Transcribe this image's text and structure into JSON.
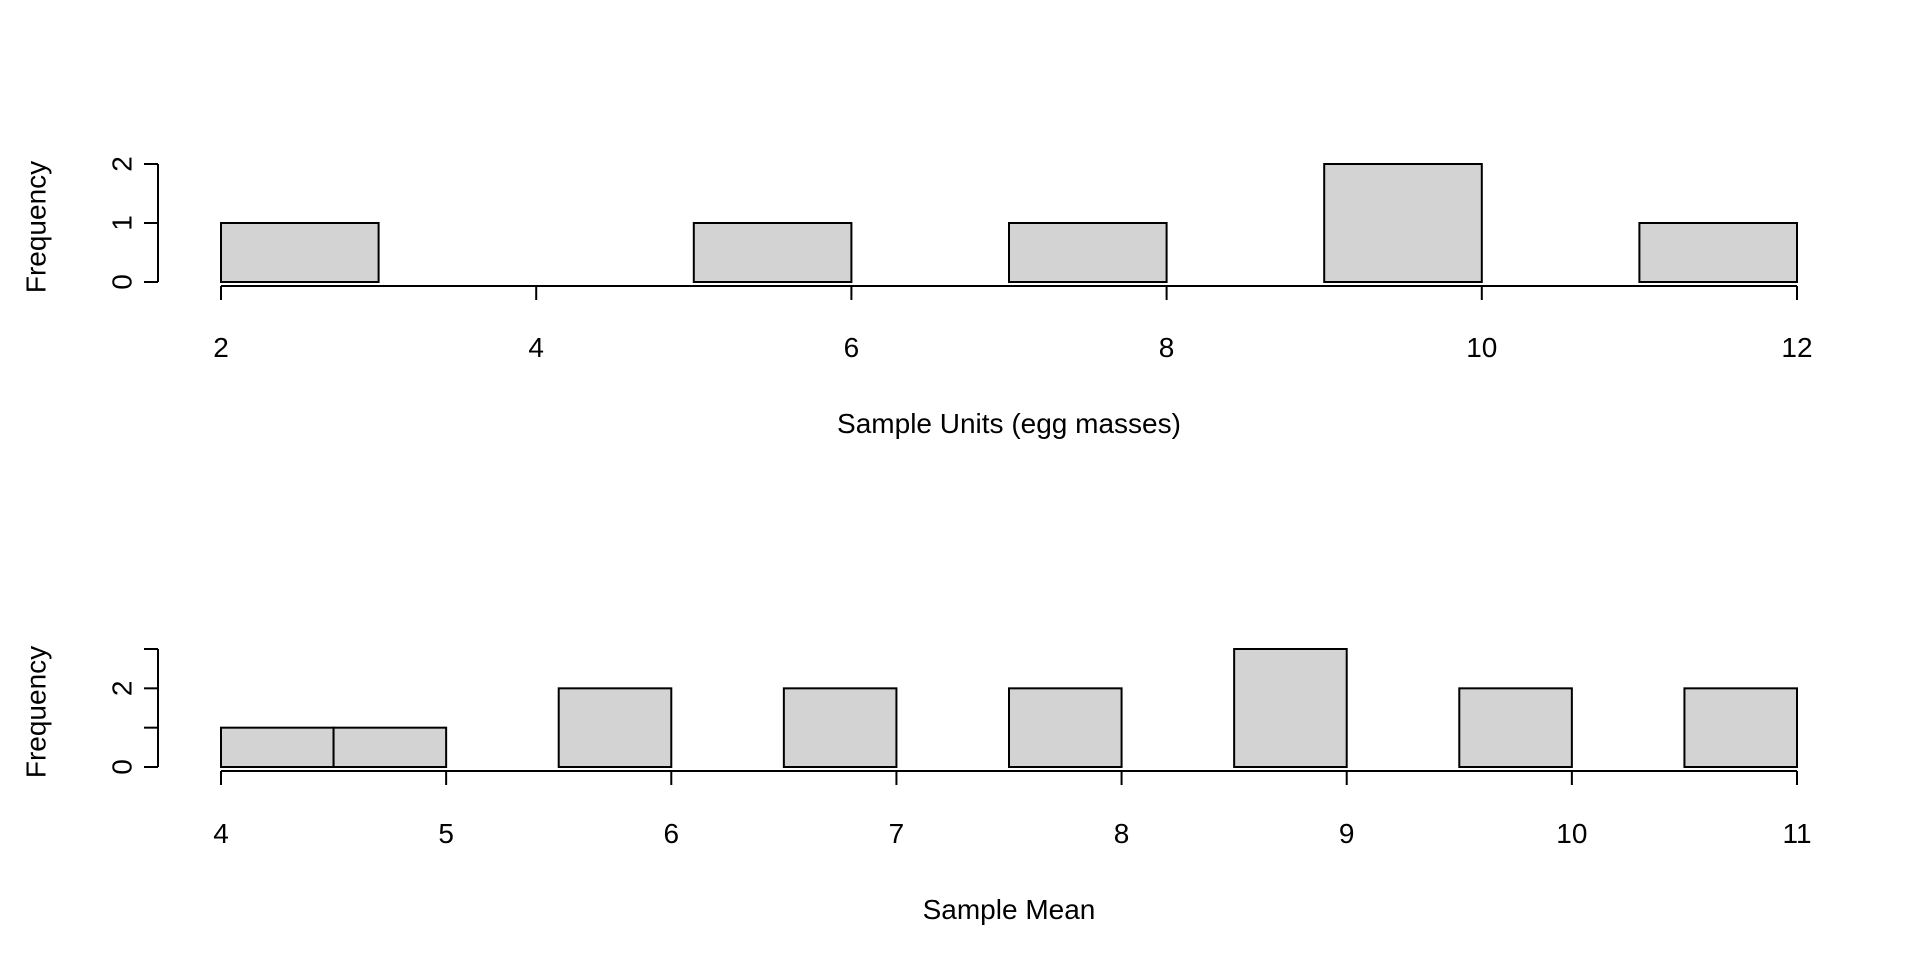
{
  "chart_data": [
    {
      "type": "bar",
      "title": "",
      "xlabel": "Sample Units (egg masses)",
      "ylabel": "Frequency",
      "bin_edges": [
        2,
        3,
        4,
        5,
        6,
        7,
        8,
        9,
        10,
        11,
        12
      ],
      "values": [
        1,
        0,
        0,
        1,
        0,
        1,
        0,
        2,
        0,
        1
      ],
      "xlim": [
        2,
        12
      ],
      "ylim": [
        0,
        2
      ],
      "x_ticks": [
        2,
        4,
        6,
        8,
        10,
        12
      ],
      "y_ticks": [
        0,
        1,
        2
      ],
      "bar_color": "#d3d3d3",
      "grid": false
    },
    {
      "type": "bar",
      "title": "",
      "xlabel": "Sample Mean",
      "ylabel": "Frequency",
      "bin_edges": [
        4,
        4.5,
        5,
        5.5,
        6,
        6.5,
        7,
        7.5,
        8,
        8.5,
        9,
        9.5,
        10,
        10.5,
        11
      ],
      "values": [
        1,
        1,
        0,
        2,
        0,
        2,
        0,
        2,
        0,
        3,
        0,
        2,
        0,
        2
      ],
      "xlim": [
        4,
        11
      ],
      "ylim": [
        0,
        3
      ],
      "x_ticks": [
        4,
        5,
        6,
        7,
        8,
        9,
        10,
        11
      ],
      "y_ticks": [
        0,
        1,
        2,
        3
      ],
      "y_tick_labels": [
        "0",
        "",
        "2",
        ""
      ],
      "bar_color": "#d3d3d3",
      "grid": false
    }
  ]
}
